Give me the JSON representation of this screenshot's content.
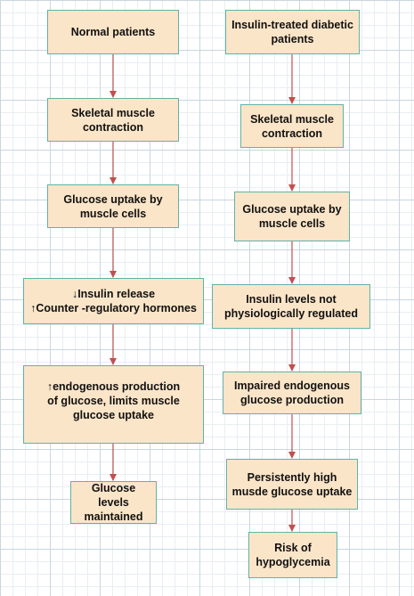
{
  "diagram": {
    "left_column": [
      {
        "id": "l1",
        "label": "Normal patients"
      },
      {
        "id": "l2",
        "label": "Skeletal muscle\ncontraction"
      },
      {
        "id": "l3",
        "label": "Glucose uptake by\nmuscle cells"
      },
      {
        "id": "l4",
        "label": "↓Insulin release\n↑Counter -regulatory hormones"
      },
      {
        "id": "l5",
        "label": "↑endogenous production\nof glucose, limits muscle\nglucose uptake"
      },
      {
        "id": "l6",
        "label": "Glucose levels\nmaintained"
      }
    ],
    "right_column": [
      {
        "id": "r1",
        "label": "Insulin-treated diabetic\npatients"
      },
      {
        "id": "r2",
        "label": "Skeletal muscle\ncontraction"
      },
      {
        "id": "r3",
        "label": "Glucose uptake by\nmuscle cells"
      },
      {
        "id": "r4",
        "label": "Insulin levels not\nphysiologically regulated"
      },
      {
        "id": "r5",
        "label": "Impaired endogenous\nglucose production"
      },
      {
        "id": "r6",
        "label": "Persistently high\nmusde glucose uptake"
      },
      {
        "id": "r7",
        "label": "Risk of\nhypoglycemia"
      }
    ],
    "colors": {
      "box_fill": "#fbe5c8",
      "box_border": "#5fb3a6",
      "arrow": "#c0504d"
    }
  }
}
